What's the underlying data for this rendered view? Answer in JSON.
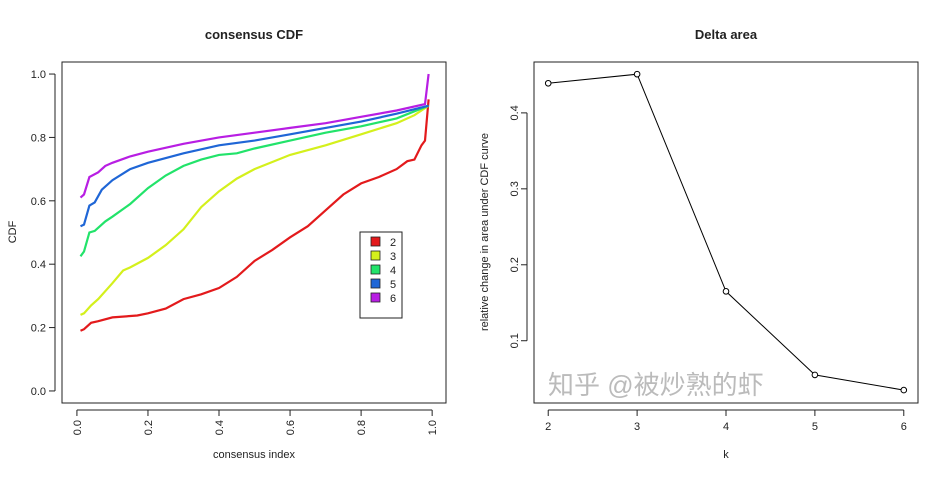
{
  "chart_data": [
    {
      "type": "line",
      "title": "consensus CDF",
      "xlabel": "consensus index",
      "ylabel": "CDF",
      "xlim": [
        -0.042,
        1.039
      ],
      "ylim": [
        -0.038,
        1.038
      ],
      "xticks": [
        "0.0",
        "0.2",
        "0.4",
        "0.6",
        "0.8",
        "1.0"
      ],
      "yticks": [
        "0.0",
        "0.2",
        "0.4",
        "0.6",
        "0.8",
        "1.0"
      ],
      "grid": false,
      "legend_placement": "center-right",
      "series": [
        {
          "name": "2",
          "color": "#e31a1c",
          "x": [
            0.01,
            0.02,
            0.04,
            0.06,
            0.1,
            0.17,
            0.2,
            0.25,
            0.3,
            0.35,
            0.4,
            0.45,
            0.5,
            0.55,
            0.6,
            0.65,
            0.7,
            0.75,
            0.8,
            0.85,
            0.9,
            0.93,
            0.95,
            0.97,
            0.98,
            0.99
          ],
          "y": [
            0.19,
            0.195,
            0.215,
            0.22,
            0.232,
            0.238,
            0.245,
            0.26,
            0.29,
            0.305,
            0.325,
            0.36,
            0.41,
            0.445,
            0.485,
            0.52,
            0.57,
            0.62,
            0.655,
            0.675,
            0.7,
            0.725,
            0.73,
            0.775,
            0.79,
            0.92
          ]
        },
        {
          "name": "3",
          "color": "#d4f01c",
          "x": [
            0.01,
            0.02,
            0.04,
            0.06,
            0.1,
            0.13,
            0.15,
            0.2,
            0.25,
            0.3,
            0.35,
            0.4,
            0.45,
            0.5,
            0.6,
            0.7,
            0.8,
            0.9,
            0.95,
            0.99
          ],
          "y": [
            0.24,
            0.245,
            0.27,
            0.29,
            0.34,
            0.38,
            0.39,
            0.42,
            0.46,
            0.51,
            0.58,
            0.63,
            0.67,
            0.7,
            0.745,
            0.775,
            0.81,
            0.845,
            0.87,
            0.9
          ]
        },
        {
          "name": "4",
          "color": "#22e36a",
          "x": [
            0.01,
            0.02,
            0.035,
            0.05,
            0.08,
            0.1,
            0.15,
            0.2,
            0.25,
            0.3,
            0.35,
            0.4,
            0.45,
            0.5,
            0.6,
            0.7,
            0.8,
            0.9,
            0.99
          ],
          "y": [
            0.425,
            0.44,
            0.5,
            0.505,
            0.535,
            0.55,
            0.59,
            0.64,
            0.68,
            0.71,
            0.73,
            0.745,
            0.75,
            0.765,
            0.79,
            0.815,
            0.835,
            0.86,
            0.9
          ]
        },
        {
          "name": "5",
          "color": "#1f66d6",
          "x": [
            0.01,
            0.02,
            0.035,
            0.05,
            0.07,
            0.1,
            0.15,
            0.2,
            0.3,
            0.4,
            0.5,
            0.6,
            0.7,
            0.8,
            0.9,
            0.99
          ],
          "y": [
            0.52,
            0.525,
            0.585,
            0.595,
            0.635,
            0.665,
            0.7,
            0.72,
            0.75,
            0.775,
            0.79,
            0.81,
            0.83,
            0.85,
            0.875,
            0.9
          ]
        },
        {
          "name": "6",
          "color": "#b81ee3",
          "x": [
            0.01,
            0.02,
            0.035,
            0.06,
            0.08,
            0.1,
            0.15,
            0.2,
            0.3,
            0.4,
            0.5,
            0.6,
            0.7,
            0.8,
            0.9,
            0.98,
            0.99
          ],
          "y": [
            0.61,
            0.62,
            0.675,
            0.69,
            0.71,
            0.72,
            0.74,
            0.755,
            0.78,
            0.8,
            0.815,
            0.83,
            0.845,
            0.865,
            0.885,
            0.905,
            1.0
          ]
        }
      ]
    },
    {
      "type": "line",
      "title": "Delta area",
      "xlabel": "k",
      "ylabel": "relative change in area under CDF curve",
      "xlim": [
        1.84,
        6.16
      ],
      "ylim": [
        0.018,
        0.467
      ],
      "xticks": [
        "2",
        "3",
        "4",
        "5",
        "6"
      ],
      "yticks": [
        "0.1",
        "0.2",
        "0.3",
        "0.4"
      ],
      "grid": false,
      "marker": "open-circle",
      "color": "#000000",
      "x": [
        2,
        3,
        4,
        5,
        6
      ],
      "y": [
        0.439,
        0.451,
        0.165,
        0.055,
        0.035
      ]
    }
  ],
  "watermark": "知乎 @被炒熟的虾"
}
